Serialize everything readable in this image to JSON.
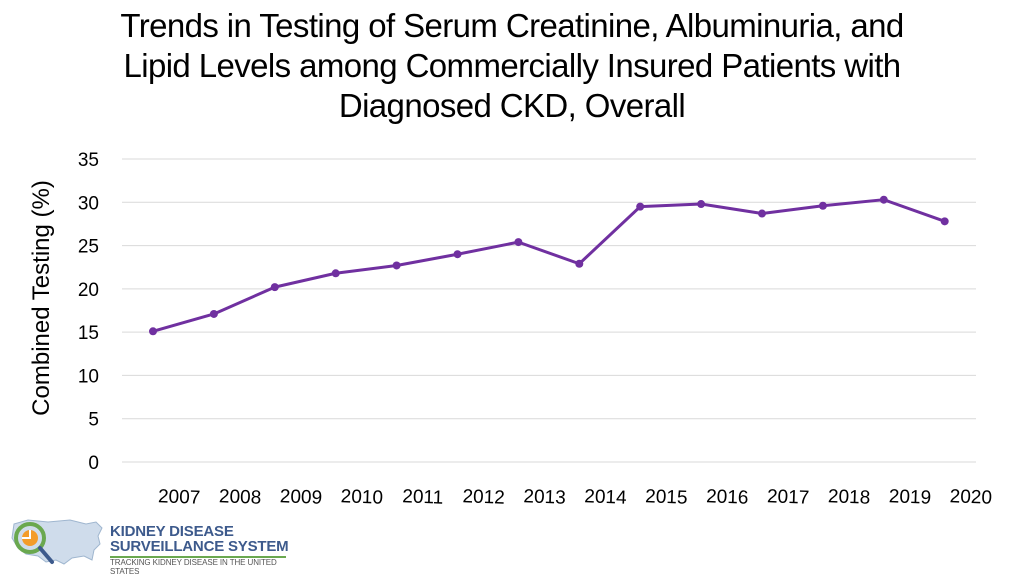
{
  "title_lines": [
    "Trends in Testing of Serum Creatinine, Albuminuria, and",
    "Lipid Levels among Commercially Insured Patients with",
    "Diagnosed CKD, Overall"
  ],
  "logo": {
    "line1": "KIDNEY DISEASE",
    "line2": "SURVEILLANCE SYSTEM",
    "tagline": "TRACKING KIDNEY DISEASE IN THE UNITED STATES"
  },
  "colors": {
    "series": "#7030a0",
    "grid": "#d9d9d9",
    "logo_blue": "#3d5a8c",
    "logo_green": "#6aa84f",
    "logo_orange": "#f39c2a"
  },
  "chart_data": {
    "type": "line",
    "title": "Trends in Testing of Serum Creatinine, Albuminuria, and Lipid Levels among Commercially Insured Patients with Diagnosed CKD, Overall",
    "xlabel": "",
    "ylabel": "Combined Testing (%)",
    "categories": [
      "2007",
      "2008",
      "2009",
      "2010",
      "2011",
      "2012",
      "2013",
      "2014",
      "2015",
      "2016",
      "2017",
      "2018",
      "2019",
      "2020"
    ],
    "series": [
      {
        "name": "",
        "values": [
          15.1,
          17.1,
          20.2,
          21.8,
          22.7,
          24.0,
          25.4,
          22.9,
          29.5,
          29.8,
          28.7,
          29.6,
          30.3,
          27.8
        ]
      }
    ],
    "ylim": [
      0,
      35
    ],
    "yticks": [
      0,
      5,
      10,
      15,
      20,
      25,
      30,
      35
    ],
    "grid": true,
    "legend": "none"
  }
}
